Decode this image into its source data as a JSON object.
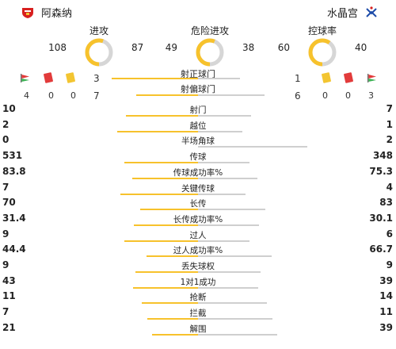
{
  "colors": {
    "home_accent": "#f7c22c",
    "away_accent": "#cfcfcf",
    "red_card": "#e23b3b",
    "yellow_card": "#f3c531"
  },
  "header": {
    "home_team": "阿森纳",
    "away_team": "水晶宫",
    "home_badge_icon": "arsenal-badge-icon",
    "away_badge_icon": "crystal-palace-badge-icon"
  },
  "gauges": [
    {
      "label": "进攻",
      "home": "108",
      "away": "87",
      "home_share": 0.554
    },
    {
      "label": "危险进攻",
      "home": "49",
      "away": "38",
      "home_share": 0.563
    },
    {
      "label": "控球率",
      "home": "60",
      "away": "40",
      "home_share": 0.6
    }
  ],
  "shots_on": {
    "label": "射正球门",
    "home": "3",
    "away": "1",
    "home_share": 0.75
  },
  "shots_off": {
    "label": "射偏球门",
    "home": "7",
    "away": "6",
    "home_share": 0.538
  },
  "disc": {
    "home_counts": [
      "4",
      "0",
      "0"
    ],
    "away_counts": [
      "0",
      "0",
      "3"
    ]
  },
  "stats": [
    {
      "name": "射门",
      "home": "10",
      "away": "7",
      "home_share": 0.588
    },
    {
      "name": "越位",
      "home": "2",
      "away": "1",
      "home_share": 0.667
    },
    {
      "name": "半场角球",
      "home": "0",
      "away": "2",
      "home_share": 0.0
    },
    {
      "name": "传球",
      "home": "531",
      "away": "348",
      "home_share": 0.604
    },
    {
      "name": "传球成功率%",
      "home": "83.8",
      "away": "75.3",
      "home_share": 0.527
    },
    {
      "name": "关键传球",
      "home": "7",
      "away": "4",
      "home_share": 0.636
    },
    {
      "name": "长传",
      "home": "70",
      "away": "83",
      "home_share": 0.458
    },
    {
      "name": "长传成功率%",
      "home": "31.4",
      "away": "30.1",
      "home_share": 0.511
    },
    {
      "name": "过人",
      "home": "9",
      "away": "6",
      "home_share": 0.6
    },
    {
      "name": "过人成功率%",
      "home": "44.4",
      "away": "66.7",
      "home_share": 0.4
    },
    {
      "name": "丢失球权",
      "home": "9",
      "away": "9",
      "home_share": 0.5
    },
    {
      "name": "1对1成功",
      "home": "43",
      "away": "39",
      "home_share": 0.524
    },
    {
      "name": "抢断",
      "home": "11",
      "away": "14",
      "home_share": 0.44
    },
    {
      "name": "拦截",
      "home": "7",
      "away": "11",
      "home_share": 0.389
    },
    {
      "name": "解围",
      "home": "21",
      "away": "39",
      "home_share": 0.35
    }
  ]
}
